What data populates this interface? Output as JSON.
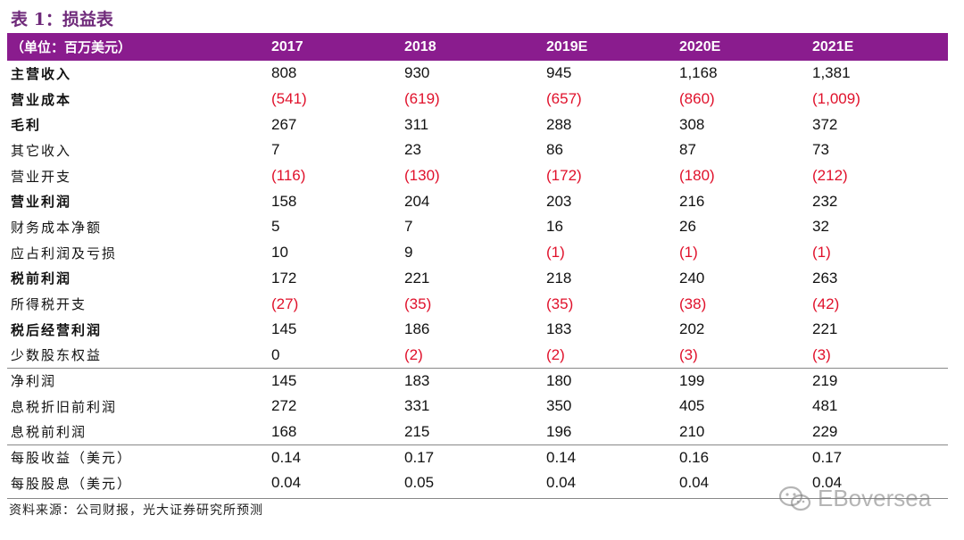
{
  "title": "表 1：损益表",
  "columns": [
    "（单位：百万美元）",
    "2017",
    "2018",
    "2019E",
    "2020E",
    "2021E"
  ],
  "rows": [
    {
      "label": "主营收入",
      "bold": true,
      "values": [
        "808",
        "930",
        "945",
        "1,168",
        "1,381"
      ]
    },
    {
      "label": "营业成本",
      "bold": true,
      "values": [
        "(541)",
        "(619)",
        "(657)",
        "(860)",
        "(1,009)"
      ]
    },
    {
      "label": "毛利",
      "bold": true,
      "values": [
        "267",
        "311",
        "288",
        "308",
        "372"
      ]
    },
    {
      "label": "其它收入",
      "bold": false,
      "values": [
        "7",
        "23",
        "86",
        "87",
        "73"
      ]
    },
    {
      "label": "营业开支",
      "bold": false,
      "values": [
        "(116)",
        "(130)",
        "(172)",
        "(180)",
        "(212)"
      ]
    },
    {
      "label": "营业利润",
      "bold": true,
      "values": [
        "158",
        "204",
        "203",
        "216",
        "232"
      ]
    },
    {
      "label": "财务成本净额",
      "bold": false,
      "values": [
        "5",
        "7",
        "16",
        "26",
        "32"
      ]
    },
    {
      "label": "应占利润及亏损",
      "bold": false,
      "values": [
        "10",
        "9",
        "(1)",
        "(1)",
        "(1)"
      ]
    },
    {
      "label": "税前利润",
      "bold": true,
      "values": [
        "172",
        "221",
        "218",
        "240",
        "263"
      ]
    },
    {
      "label": "所得税开支",
      "bold": false,
      "values": [
        "(27)",
        "(35)",
        "(35)",
        "(38)",
        "(42)"
      ]
    },
    {
      "label": "税后经营利润",
      "bold": true,
      "values": [
        "145",
        "186",
        "183",
        "202",
        "221"
      ]
    },
    {
      "label": "少数股东权益",
      "bold": false,
      "values": [
        "0",
        "(2)",
        "(2)",
        "(3)",
        "(3)"
      ]
    },
    {
      "label": "净利润",
      "bold": false,
      "sep": true,
      "values": [
        "145",
        "183",
        "180",
        "199",
        "219"
      ]
    },
    {
      "label": "息税折旧前利润",
      "bold": false,
      "values": [
        "272",
        "331",
        "350",
        "405",
        "481"
      ]
    },
    {
      "label": "息税前利润",
      "bold": false,
      "values": [
        "168",
        "215",
        "196",
        "210",
        "229"
      ]
    },
    {
      "label": "每股收益（美元）",
      "bold": false,
      "sep": true,
      "values": [
        "0.14",
        "0.17",
        "0.14",
        "0.16",
        "0.17"
      ]
    },
    {
      "label": "每股股息（美元）",
      "bold": false,
      "values": [
        "0.04",
        "0.05",
        "0.04",
        "0.04",
        "0.04"
      ]
    }
  ],
  "negative_color": "#e0112b",
  "header_color": "#8a1c8e",
  "title_color": "#6f2a7a",
  "source": "资料来源：公司财报，光大证券研究所预测",
  "watermark": {
    "icon": "wechat-icon",
    "text": "EBoversea"
  }
}
